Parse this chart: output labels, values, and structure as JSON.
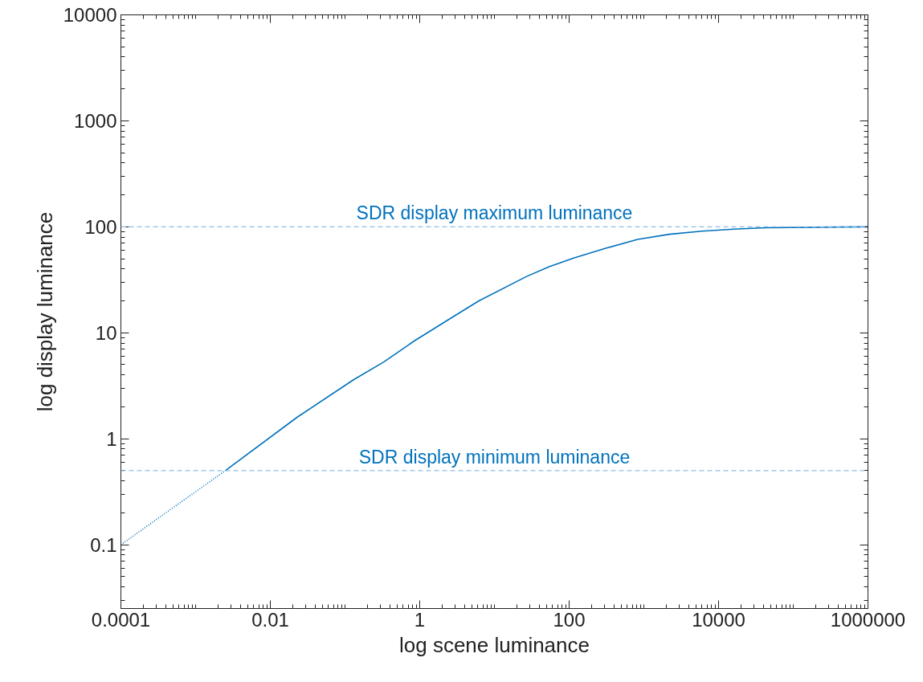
{
  "chart_data": {
    "type": "line",
    "xlabel": "log scene luminance",
    "ylabel": "log display luminance",
    "log": "xy",
    "xlim": [
      0.0001,
      1000000
    ],
    "ylim": [
      0.025,
      10000
    ],
    "xticks": [
      0.0001,
      0.01,
      1,
      100,
      10000,
      1000000
    ],
    "yticks": [
      0.1,
      1,
      10,
      100,
      1000,
      10000
    ],
    "grid": false,
    "marker": "none",
    "series": [
      {
        "color": "#0072bd",
        "line_style": "dotted",
        "x": [
          0.0001,
          0.0025
        ],
        "values": [
          0.1,
          0.5
        ]
      },
      {
        "color": "#0072bd",
        "line_style": "solid",
        "x": [
          0.0025,
          0.023,
          0.13,
          0.33,
          0.62,
          0.85,
          2.3,
          6.2,
          27,
          54,
          117,
          316,
          826,
          2200,
          6000,
          16000,
          43000,
          1000000
        ],
        "values": [
          0.5,
          1.6,
          3.6,
          5.3,
          7.2,
          8.4,
          13,
          20,
          34,
          42,
          51,
          63,
          76,
          85,
          91,
          95,
          98,
          100
        ]
      }
    ],
    "ref_lines": [
      {
        "axis": "y",
        "value": 100,
        "label": "SDR display maximum luminance",
        "color": "#8fbce6",
        "line_style": "dashed"
      },
      {
        "axis": "y",
        "value": 0.5,
        "label": "SDR display minimum luminance",
        "color": "#8fbce6",
        "line_style": "dashed"
      }
    ]
  }
}
